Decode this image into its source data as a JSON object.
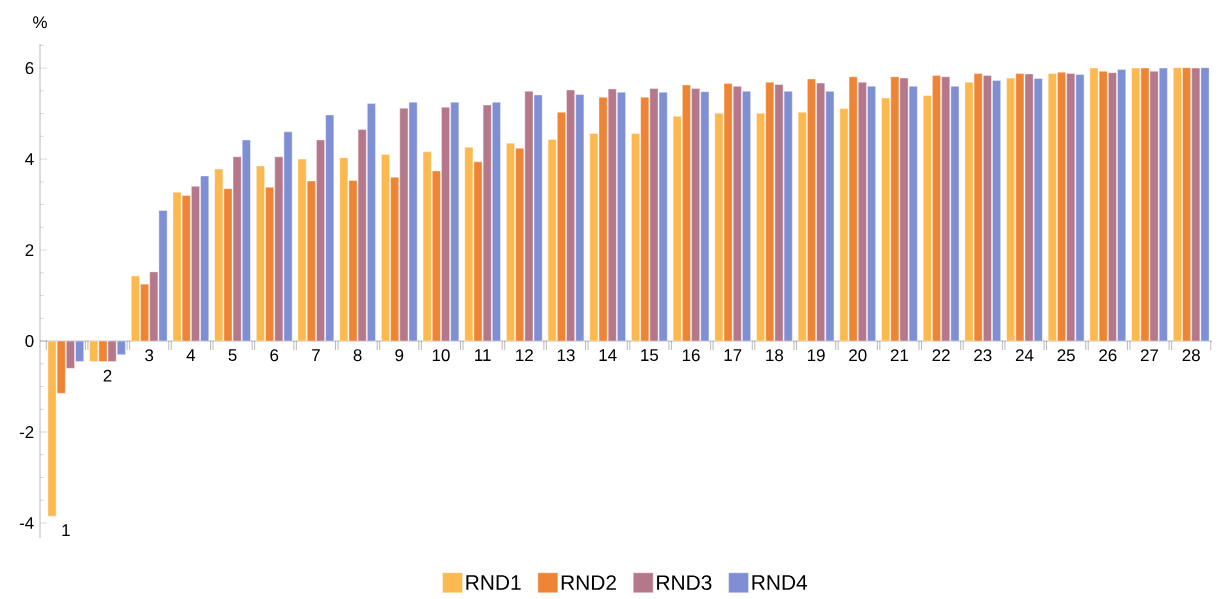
{
  "chart_data": {
    "type": "bar",
    "ylabel": "%",
    "categories": [
      "1",
      "2",
      "3",
      "4",
      "5",
      "6",
      "7",
      "8",
      "9",
      "10",
      "11",
      "12",
      "13",
      "14",
      "15",
      "16",
      "17",
      "18",
      "19",
      "20",
      "21",
      "22",
      "23",
      "24",
      "25",
      "26",
      "27",
      "28"
    ],
    "series": [
      {
        "name": "RND1",
        "color": "#fbb94f",
        "values": [
          -3.85,
          -0.45,
          1.43,
          3.27,
          3.78,
          3.85,
          4.0,
          4.03,
          4.1,
          4.16,
          4.26,
          4.35,
          4.43,
          4.56,
          4.56,
          4.94,
          5.01,
          5.01,
          5.03,
          5.11,
          5.34,
          5.4,
          5.69,
          5.78,
          5.88,
          6.0,
          6.0,
          6.01
        ]
      },
      {
        "name": "RND2",
        "color": "#ee8535",
        "values": [
          -1.15,
          -0.45,
          1.25,
          3.2,
          3.35,
          3.38,
          3.52,
          3.53,
          3.6,
          3.74,
          3.94,
          4.24,
          5.03,
          5.36,
          5.36,
          5.63,
          5.66,
          5.69,
          5.76,
          5.81,
          5.81,
          5.84,
          5.88,
          5.88,
          5.91,
          5.93,
          6.0,
          6.01
        ]
      },
      {
        "name": "RND3",
        "color": "#b5788a",
        "values": [
          -0.6,
          -0.45,
          1.52,
          3.4,
          4.05,
          4.05,
          4.42,
          4.65,
          5.12,
          5.14,
          5.19,
          5.49,
          5.52,
          5.54,
          5.55,
          5.55,
          5.6,
          5.64,
          5.67,
          5.69,
          5.78,
          5.81,
          5.84,
          5.87,
          5.88,
          5.9,
          5.93,
          6.0
        ]
      },
      {
        "name": "RND4",
        "color": "#7f8fd4",
        "values": [
          -0.45,
          -0.3,
          2.87,
          3.63,
          4.42,
          4.6,
          4.97,
          5.22,
          5.25,
          5.25,
          5.25,
          5.41,
          5.42,
          5.47,
          5.47,
          5.48,
          5.49,
          5.49,
          5.49,
          5.6,
          5.6,
          5.6,
          5.73,
          5.77,
          5.86,
          5.97,
          6.0,
          6.01
        ]
      }
    ],
    "ylim": [
      -4.33,
      6.53
    ],
    "yticks": [
      {
        "value": -4.0,
        "label": "-4"
      },
      {
        "value": -3.5,
        "label": null
      },
      {
        "value": -3.0,
        "label": null
      },
      {
        "value": -2.5,
        "label": null
      },
      {
        "value": -2.0,
        "label": "-2"
      },
      {
        "value": -1.5,
        "label": null
      },
      {
        "value": -1.0,
        "label": null
      },
      {
        "value": -0.5,
        "label": null
      },
      0,
      {
        "value": 0.5,
        "label": null
      },
      {
        "value": 1.0,
        "label": null
      },
      {
        "value": 1.5,
        "label": null
      },
      2,
      {
        "value": 2.5,
        "label": null
      },
      {
        "value": 3.0,
        "label": null
      },
      {
        "value": 3.5,
        "label": null
      },
      4,
      {
        "value": 4.5,
        "label": null
      },
      {
        "value": 5.0,
        "label": null
      },
      {
        "value": 5.5,
        "label": null
      },
      6,
      {
        "value": 6.5,
        "label": null
      }
    ],
    "legend": "bottom"
  }
}
